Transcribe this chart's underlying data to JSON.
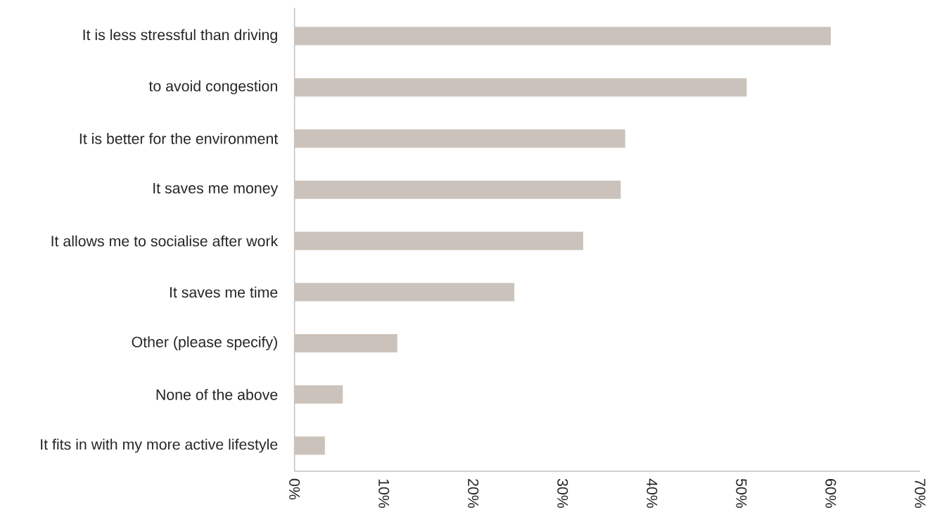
{
  "chart_data": {
    "type": "bar",
    "orientation": "horizontal",
    "categories": [
      "It is less stressful than driving",
      "to avoid congestion",
      "It is better for the environment",
      "It saves me money",
      "It allows me to socialise after work",
      "It saves me time",
      "Other (please specify)",
      "None of the above",
      "It fits in with my more active lifestyle"
    ],
    "values": [
      60.0,
      50.6,
      37.0,
      36.5,
      32.3,
      24.6,
      11.5,
      5.4,
      3.4
    ],
    "color": "#cbc3bb",
    "xlim": [
      0,
      70
    ],
    "xticks": [
      {
        "value": 0,
        "label": "0%"
      },
      {
        "value": 10,
        "label": "10%"
      },
      {
        "value": 20,
        "label": "20%"
      },
      {
        "value": 30,
        "label": "30%"
      },
      {
        "value": 40,
        "label": "40%"
      },
      {
        "value": 50,
        "label": "50%"
      },
      {
        "value": 60,
        "label": "60%"
      },
      {
        "value": 70,
        "label": "70%"
      }
    ]
  }
}
